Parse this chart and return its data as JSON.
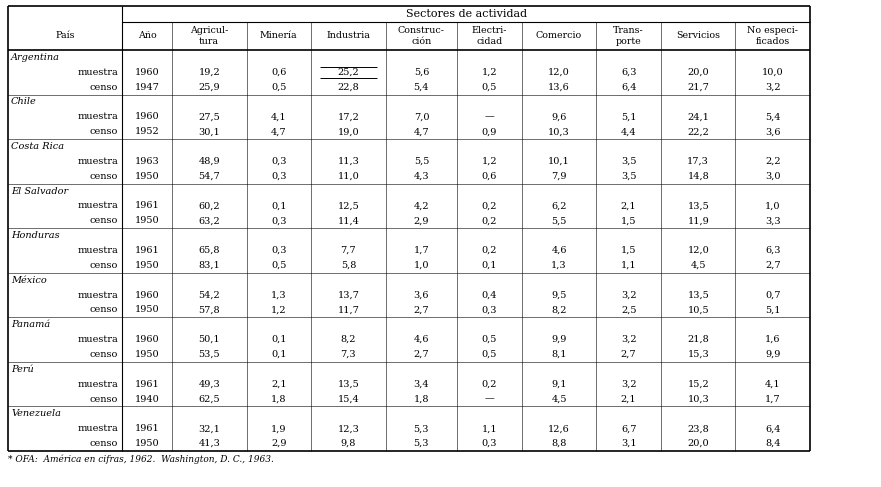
{
  "title_top": "Sectores de actividad",
  "col_headers": [
    "País",
    "Año",
    "Agricul-\ntura",
    "Minería",
    "Industria",
    "Construc-\nción",
    "Electri-\ncidad",
    "Comercio",
    "Trans-\nporte",
    "Servicios",
    "No especi-\nficados"
  ],
  "rows": [
    [
      "Argentina",
      "",
      "",
      "",
      "",
      "",
      "",
      "",
      "",
      "",
      ""
    ],
    [
      "muestra",
      "1960",
      "19,2",
      "0,6",
      "25,2",
      "5,6",
      "1,2",
      "12,0",
      "6,3",
      "20,0",
      "10,0"
    ],
    [
      "censo",
      "1947",
      "25,9",
      "0,5",
      "22,8",
      "5,4",
      "0,5",
      "13,6",
      "6,4",
      "21,7",
      "3,2"
    ],
    [
      "Chile",
      "",
      "",
      "",
      "",
      "",
      "",
      "",
      "",
      "",
      ""
    ],
    [
      "muestra",
      "1960",
      "27,5",
      "4,1",
      "17,2",
      "7,0",
      "—",
      "9,6",
      "5,1",
      "24,1",
      "5,4"
    ],
    [
      "censo",
      "1952",
      "30,1",
      "4,7",
      "19,0",
      "4,7",
      "0,9",
      "10,3",
      "4,4",
      "22,2",
      "3,6"
    ],
    [
      "Costa Rica",
      "",
      "",
      "",
      "",
      "",
      "",
      "",
      "",
      "",
      ""
    ],
    [
      "muestra",
      "1963",
      "48,9",
      "0,3",
      "11,3",
      "5,5",
      "1,2",
      "10,1",
      "3,5",
      "17,3",
      "2,2"
    ],
    [
      "censo",
      "1950",
      "54,7",
      "0,3",
      "11,0",
      "4,3",
      "0,6",
      "7,9",
      "3,5",
      "14,8",
      "3,0"
    ],
    [
      "El Salvador",
      "",
      "",
      "",
      "",
      "",
      "",
      "",
      "",
      "",
      ""
    ],
    [
      "muestra",
      "1961",
      "60,2",
      "0,1",
      "12,5",
      "4,2",
      "0,2",
      "6,2",
      "2,1",
      "13,5",
      "1,0"
    ],
    [
      "censo",
      "1950",
      "63,2",
      "0,3",
      "11,4",
      "2,9",
      "0,2",
      "5,5",
      "1,5",
      "11,9",
      "3,3"
    ],
    [
      "Honduras",
      "",
      "",
      "",
      "",
      "",
      "",
      "",
      "",
      "",
      ""
    ],
    [
      "muestra",
      "1961",
      "65,8",
      "0,3",
      "7,7",
      "1,7",
      "0,2",
      "4,6",
      "1,5",
      "12,0",
      "6,3"
    ],
    [
      "censo",
      "1950",
      "83,1",
      "0,5",
      "5,8",
      "1,0",
      "0,1",
      "1,3",
      "1,1",
      "4,5",
      "2,7"
    ],
    [
      "México",
      "",
      "",
      "",
      "",
      "",
      "",
      "",
      "",
      "",
      ""
    ],
    [
      "muestra",
      "1960",
      "54,2",
      "1,3",
      "13,7",
      "3,6",
      "0,4",
      "9,5",
      "3,2",
      "13,5",
      "0,7"
    ],
    [
      "censo",
      "1950",
      "57,8",
      "1,2",
      "11,7",
      "2,7",
      "0,3",
      "8,2",
      "2,5",
      "10,5",
      "5,1"
    ],
    [
      "Panamá",
      "",
      "",
      "",
      "",
      "",
      "",
      "",
      "",
      "",
      ""
    ],
    [
      "muestra",
      "1960",
      "50,1",
      "0,1",
      "8,2",
      "4,6",
      "0,5",
      "9,9",
      "3,2",
      "21,8",
      "1,6"
    ],
    [
      "censo",
      "1950",
      "53,5",
      "0,1",
      "7,3",
      "2,7",
      "0,5",
      "8,1",
      "2,7",
      "15,3",
      "9,9"
    ],
    [
      "Perú",
      "",
      "",
      "",
      "",
      "",
      "",
      "",
      "",
      "",
      ""
    ],
    [
      "muestra",
      "1961",
      "49,3",
      "2,1",
      "13,5",
      "3,4",
      "0,2",
      "9,1",
      "3,2",
      "15,2",
      "4,1"
    ],
    [
      "censo",
      "1940",
      "62,5",
      "1,8",
      "15,4",
      "1,8",
      "—",
      "4,5",
      "2,1",
      "10,3",
      "1,7"
    ],
    [
      "Venezuela",
      "",
      "",
      "",
      "",
      "",
      "",
      "",
      "",
      "",
      ""
    ],
    [
      "muestra",
      "1961",
      "32,1",
      "1,9",
      "12,3",
      "5,3",
      "1,1",
      "12,6",
      "6,7",
      "23,8",
      "6,4"
    ],
    [
      "censo",
      "1950",
      "41,3",
      "2,9",
      "9,8",
      "5,3",
      "0,3",
      "8,8",
      "3,1",
      "20,0",
      "8,4"
    ]
  ],
  "country_rows": [
    0,
    3,
    6,
    9,
    12,
    15,
    18,
    21,
    24
  ],
  "footnote": "* OFA:  América en cifras, 1962.  Washington, D. C., 1963.",
  "bg_color": "#ffffff"
}
